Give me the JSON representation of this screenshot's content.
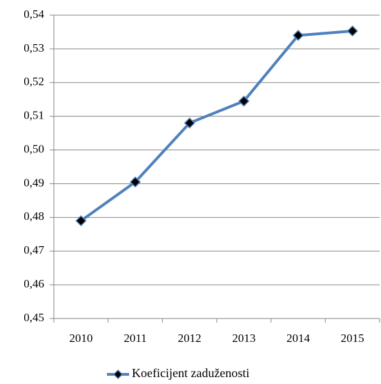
{
  "chart_data": {
    "type": "line",
    "categories": [
      "2010",
      "2011",
      "2012",
      "2013",
      "2014",
      "2015"
    ],
    "series": [
      {
        "name": "Koeficijent zaduženosti",
        "color": "#4f81bd",
        "values": [
          0.479,
          0.4905,
          0.508,
          0.5145,
          0.534,
          0.5353
        ]
      }
    ],
    "ylim": [
      0.45,
      0.54
    ],
    "yticks": [
      {
        "value": 0.45,
        "label": "0,45"
      },
      {
        "value": 0.46,
        "label": "0,46"
      },
      {
        "value": 0.47,
        "label": "0,47"
      },
      {
        "value": 0.48,
        "label": "0,48"
      },
      {
        "value": 0.49,
        "label": "0,49"
      },
      {
        "value": 0.5,
        "label": "0,50"
      },
      {
        "value": 0.51,
        "label": "0,51"
      },
      {
        "value": 0.52,
        "label": "0,52"
      },
      {
        "value": 0.53,
        "label": "0,53"
      },
      {
        "value": 0.54,
        "label": "0,54"
      }
    ],
    "grid": true,
    "legend": "bottom"
  }
}
